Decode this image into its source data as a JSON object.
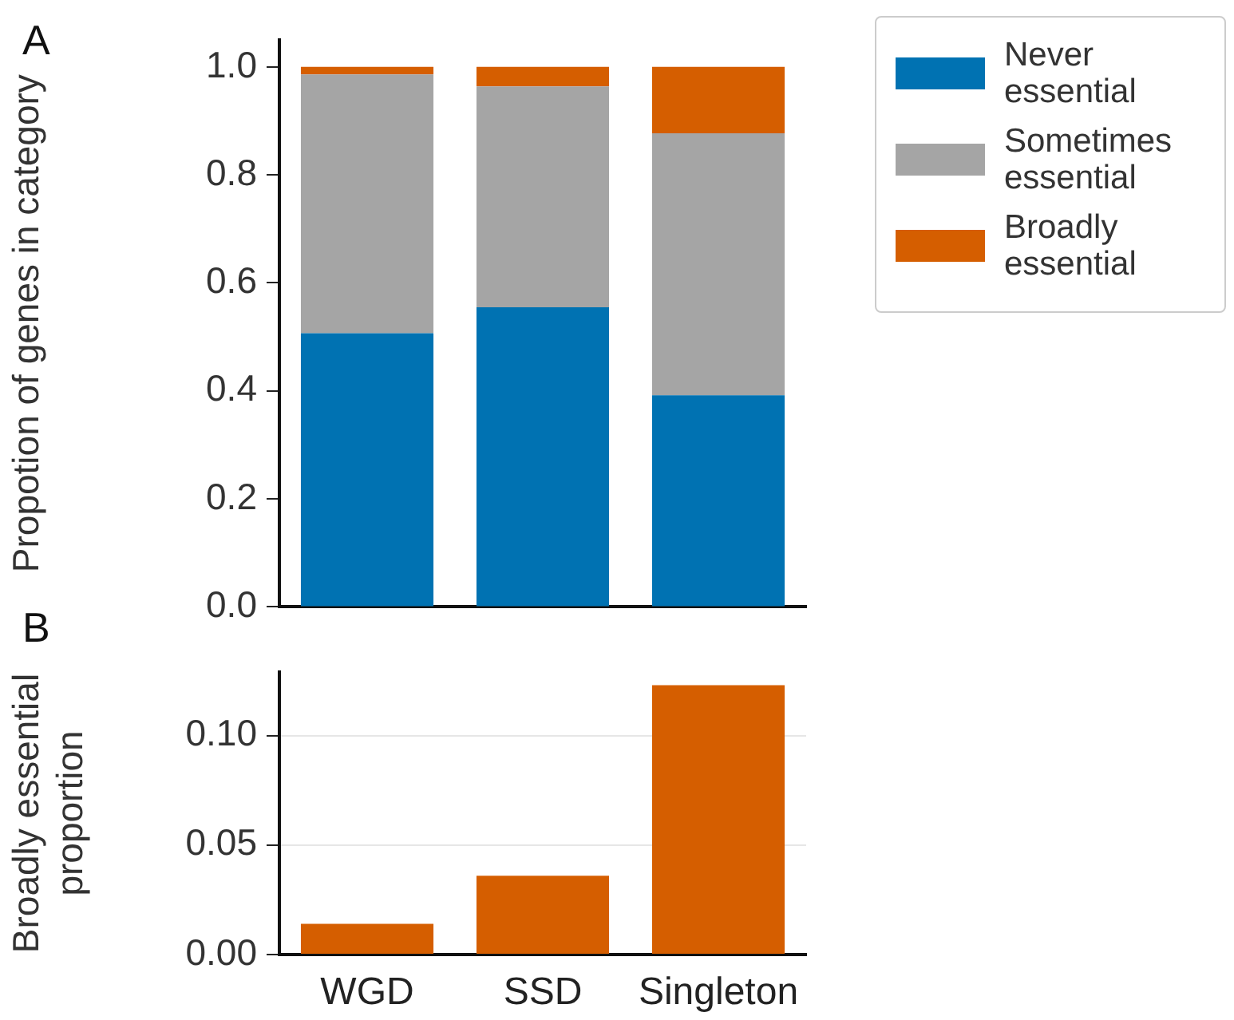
{
  "chart_data": [
    {
      "type": "bar",
      "stacked": true,
      "ylabel": "Propotion of genes in category",
      "categories": [
        null,
        null,
        null
      ],
      "ylim": [
        0,
        1.05
      ],
      "yticks": [
        {
          "value": 0,
          "label": "0.0"
        },
        0.2,
        0.4,
        0.6,
        0.8,
        {
          "value": 1,
          "label": "1.0"
        }
      ],
      "tick_labels": "y",
      "legend": "top right",
      "grid": false,
      "annotations": [
        "A"
      ],
      "series": [
        {
          "name": "Never essential",
          "color": "#0072b2",
          "values": [
            0.507,
            0.555,
            0.392
          ]
        },
        {
          "name": "Sometimes essential",
          "color": "#a5a5a5",
          "values": [
            0.479,
            0.409,
            0.485
          ]
        },
        {
          "name": "Broadly essential",
          "color": "#d55e00",
          "values": [
            0.014,
            0.036,
            0.123
          ]
        }
      ]
    },
    {
      "type": "bar",
      "ylabel": "Broadly essential proportion",
      "categories": [
        "WGD",
        "SSD",
        "Singleton"
      ],
      "ylim": [
        0,
        0.129
      ],
      "yticks": [
        {
          "value": 0,
          "label": "0.00"
        },
        0.05,
        {
          "value": 0.1,
          "label": "0.10"
        }
      ],
      "grid": "y",
      "annotations": [
        "B"
      ],
      "series": [
        {
          "color": "#d55e00",
          "values": [
            0.014,
            0.036,
            0.123
          ]
        }
      ]
    }
  ]
}
